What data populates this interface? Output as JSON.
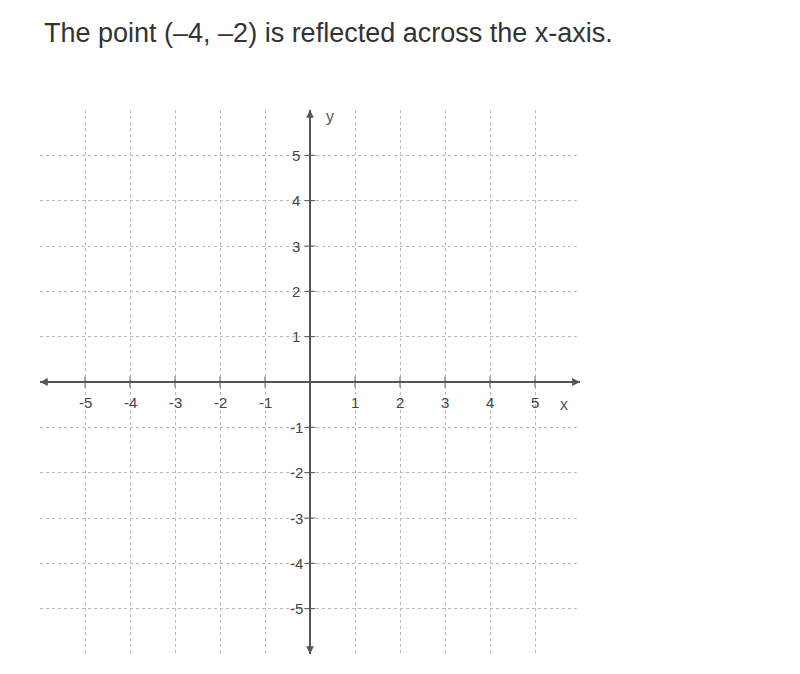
{
  "chart_data": {
    "type": "scatter",
    "title": "The point (–4, –2) is reflected across the x-axis.",
    "x_label": "x",
    "y_label": "y",
    "xlim": [
      -6,
      6
    ],
    "ylim": [
      -6,
      6
    ],
    "xticks": [
      -5,
      -4,
      -3,
      -2,
      -1,
      1,
      2,
      3,
      4,
      5
    ],
    "yticks": [
      -5,
      -4,
      -3,
      -2,
      -1,
      1,
      2,
      3,
      4,
      5
    ],
    "grid": true
  }
}
